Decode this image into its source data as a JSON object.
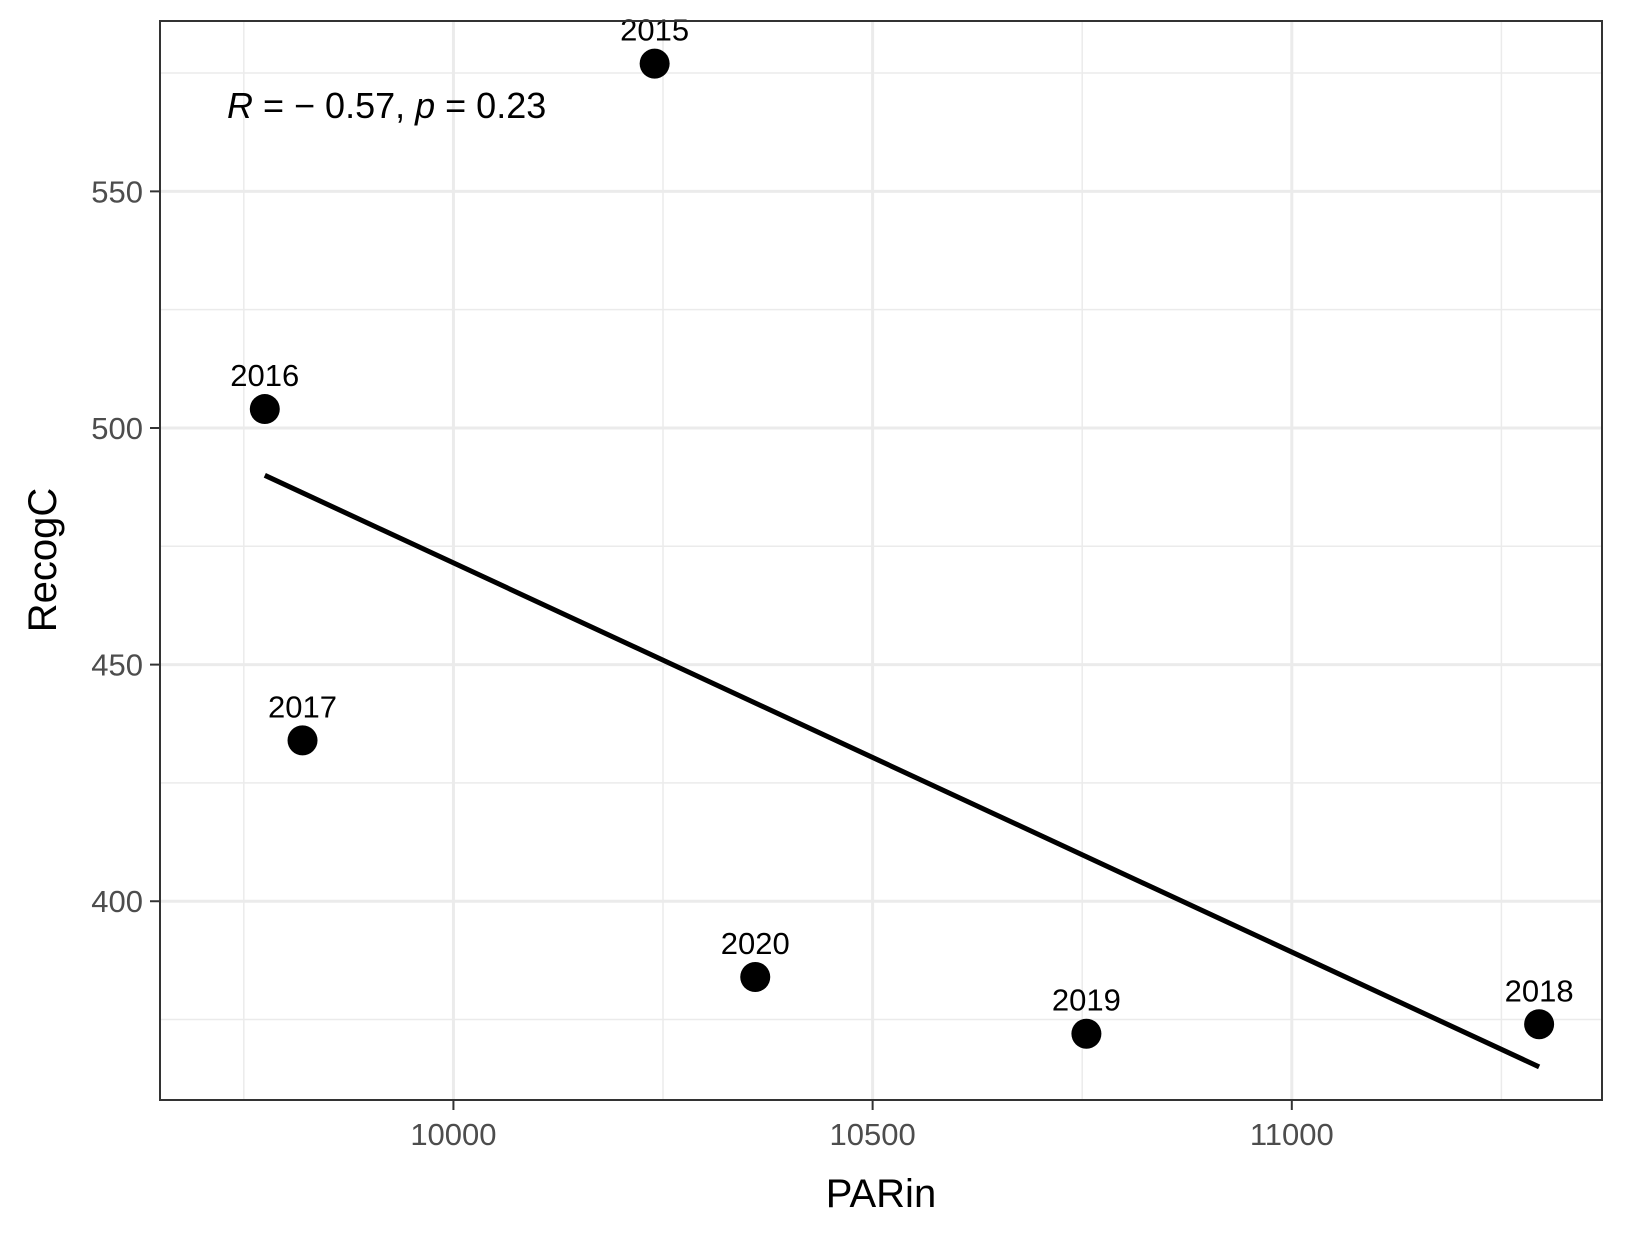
{
  "chart_data": {
    "type": "scatter",
    "title": "",
    "xlabel": "PARin",
    "ylabel": "RecogC",
    "xlim": [
      9650,
      11370
    ],
    "ylim": [
      358,
      586
    ],
    "x_ticks": [
      10000,
      10500,
      11000
    ],
    "y_ticks": [
      400,
      450,
      500,
      550
    ],
    "x_tick_labels": [
      "10000",
      "10500",
      11000
    ],
    "y_tick_labels": [
      "400",
      "450",
      "500",
      "550"
    ],
    "grid": true,
    "legend": "none",
    "points": [
      {
        "label": "2015",
        "x": 10240,
        "y": 577
      },
      {
        "label": "2016",
        "x": 9775,
        "y": 504
      },
      {
        "label": "2017",
        "x": 9820,
        "y": 434
      },
      {
        "label": "2020",
        "x": 10360,
        "y": 384
      },
      {
        "label": "2019",
        "x": 10755,
        "y": 372
      },
      {
        "label": "2018",
        "x": 11295,
        "y": 374
      }
    ],
    "regression_line": {
      "x": [
        9775,
        11295
      ],
      "y": [
        490,
        365
      ]
    },
    "annotation": {
      "r_symbol": "R",
      "r_text": " = − 0.57, ",
      "p_symbol": "p",
      "p_text": " = 0.23"
    },
    "colors": {
      "points": "#000000",
      "line": "#000000",
      "grid": "#ebebeb",
      "panel_border": "#333333"
    }
  }
}
